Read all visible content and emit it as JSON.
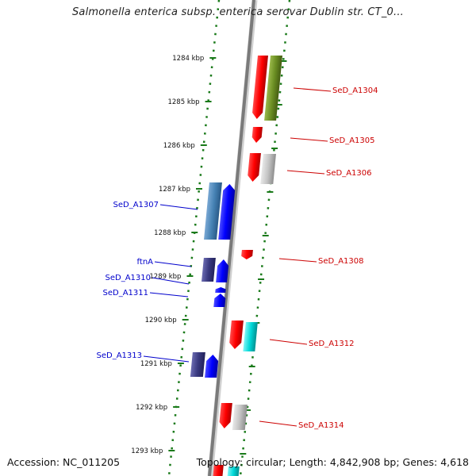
{
  "title": "Salmonella enterica subsp. enterica serovar Dublin str. CT_0...",
  "footer": {
    "accession": "Accession: NC_011205",
    "topology": "Topology: circular; Length: 4,842,908 bp; Genes: 4,618"
  },
  "colors": {
    "backbone": "#888888",
    "forward_label": "#0000cc",
    "reverse_label": "#cc0000",
    "tick": "#1a7a1a"
  },
  "kbp_ticks": [
    {
      "label": "1284 kbp"
    },
    {
      "label": "1285 kbp"
    },
    {
      "label": "1286 kbp"
    },
    {
      "label": "1287 kbp"
    },
    {
      "label": "1288 kbp"
    },
    {
      "label": "1289 kbp"
    },
    {
      "label": "1290 kbp"
    },
    {
      "label": "1291 kbp"
    },
    {
      "label": "1292 kbp"
    },
    {
      "label": "1293 kbp"
    }
  ],
  "genes": [
    {
      "label": "SeD_A1304",
      "strand": "reverse"
    },
    {
      "label": "SeD_A1305",
      "strand": "reverse"
    },
    {
      "label": "SeD_A1306",
      "strand": "reverse"
    },
    {
      "label": "SeD_A1307",
      "strand": "forward"
    },
    {
      "label": "SeD_A1308",
      "strand": "reverse"
    },
    {
      "label": "ftnA",
      "strand": "forward"
    },
    {
      "label": "SeD_A1310",
      "strand": "forward"
    },
    {
      "label": "SeD_A1311",
      "strand": "forward"
    },
    {
      "label": "SeD_A1312",
      "strand": "reverse"
    },
    {
      "label": "SeD_A1313",
      "strand": "forward"
    },
    {
      "label": "SeD_A1314",
      "strand": "reverse"
    }
  ]
}
